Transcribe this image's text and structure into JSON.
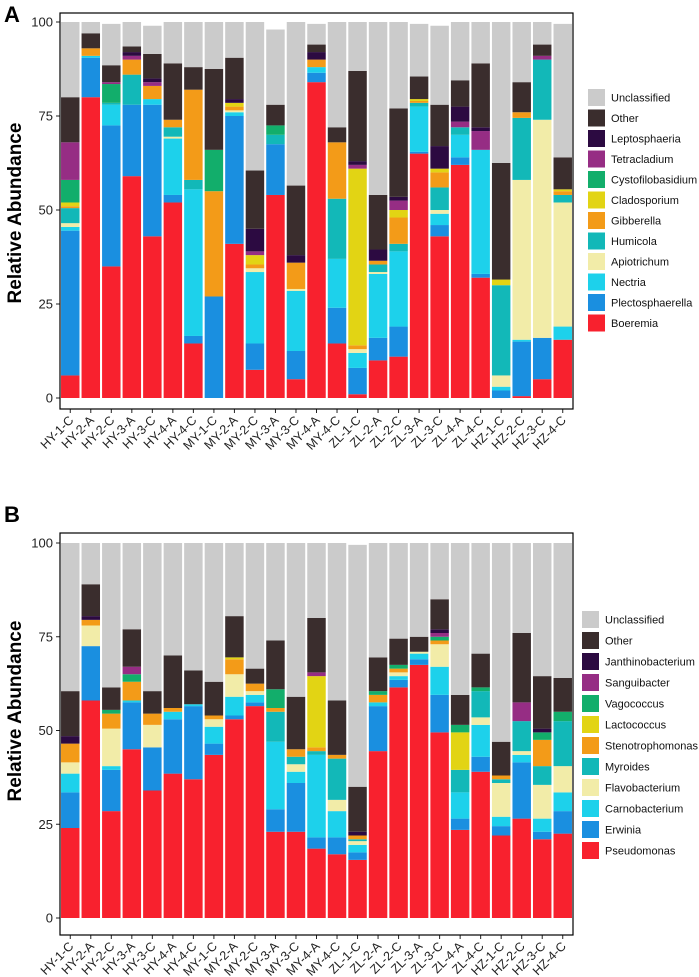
{
  "chart_data": [
    {
      "panel": "A",
      "type": "bar",
      "stacked": true,
      "ylabel": "Relative Abundance",
      "ylim": [
        0,
        100
      ],
      "yticks": [
        0,
        25,
        50,
        75,
        100
      ],
      "categories": [
        "HY-1-C",
        "HY-2-A",
        "HY-2-C",
        "HY-3-A",
        "HY-3-C",
        "HY-4-A",
        "HY-4-C",
        "MY-1-C",
        "MY-2-A",
        "MY-2-C",
        "MY-3-A",
        "MY-3-C",
        "MY-4-A",
        "MY-4-C",
        "ZL-1-C",
        "ZL-2-A",
        "ZL-2-C",
        "ZL-3-A",
        "ZL-3-C",
        "ZL-4-A",
        "ZL-4-C",
        "HZ-1-C",
        "HZ-2-C",
        "HZ-3-C",
        "HZ-4-C"
      ],
      "series": [
        {
          "name": "Boeremia",
          "color": "#F8212E",
          "values": [
            6,
            80,
            35,
            59,
            43,
            52,
            14.5,
            0,
            41,
            7.5,
            54,
            5,
            84,
            14.5,
            1,
            10,
            11,
            65,
            43,
            62,
            32,
            0,
            0.5,
            5,
            15.5
          ]
        },
        {
          "name": "Plectosphaerella",
          "color": "#1A8FE0",
          "values": [
            38.5,
            10.5,
            37.5,
            19,
            35,
            2,
            2,
            27,
            34,
            7,
            13.5,
            7.5,
            2.5,
            9.5,
            7,
            6,
            8,
            0.5,
            3,
            2,
            1,
            2,
            14.5,
            11,
            0
          ]
        },
        {
          "name": "Nectria",
          "color": "#1DD1EB",
          "values": [
            1,
            0.5,
            5.5,
            0,
            1.5,
            15,
            39,
            0,
            1,
            19,
            0,
            16,
            1.5,
            13,
            4,
            17,
            20,
            12,
            3,
            6,
            33,
            1,
            0.5,
            0,
            3.5
          ]
        },
        {
          "name": "Apiotrichum",
          "color": "#F2ECA8",
          "values": [
            1,
            0,
            0,
            0,
            0,
            0.5,
            0,
            0,
            0.5,
            1,
            0,
            0.5,
            0,
            0,
            1,
            0.5,
            0,
            0,
            1,
            0,
            0,
            3,
            42.5,
            58,
            33
          ]
        },
        {
          "name": "Humicola",
          "color": "#12B8B8",
          "values": [
            4,
            0,
            0.5,
            8,
            0,
            2.5,
            2.5,
            0,
            0,
            0,
            2.5,
            0,
            0,
            16,
            0,
            2,
            2,
            1,
            6,
            2,
            0,
            24,
            16.5,
            16,
            2
          ]
        },
        {
          "name": "Gibberella",
          "color": "#F39B18",
          "values": [
            0.5,
            2,
            0,
            4,
            3.5,
            2,
            24,
            28,
            1,
            1,
            0,
            7,
            2,
            15,
            1,
            1,
            7,
            0.5,
            4,
            0,
            0,
            0,
            1.5,
            0,
            1
          ]
        },
        {
          "name": "Cladosporium",
          "color": "#E2D414",
          "values": [
            1,
            0,
            0,
            0,
            0,
            0,
            0,
            0,
            1,
            2.5,
            0,
            0,
            0,
            0,
            47,
            0,
            2,
            0.5,
            1,
            0,
            0,
            1.5,
            0,
            0,
            0.5
          ]
        },
        {
          "name": "Cystofilobasidium",
          "color": "#12AE6B",
          "values": [
            6,
            0,
            5,
            0,
            0,
            0,
            0,
            11,
            0,
            0,
            2.5,
            0,
            0,
            0,
            0,
            0,
            0,
            0,
            0,
            0,
            0,
            0,
            0,
            0,
            0
          ]
        },
        {
          "name": "Tetracladium",
          "color": "#962D84",
          "values": [
            10,
            0,
            0.5,
            1,
            1,
            0,
            0,
            0,
            0,
            1,
            0,
            0,
            0,
            0,
            1,
            0,
            2.5,
            0,
            0,
            1.5,
            5,
            0,
            0,
            1,
            0
          ]
        },
        {
          "name": "Leptosphaeria",
          "color": "#2C0A41",
          "values": [
            0,
            0,
            0,
            1,
            1,
            0,
            0,
            0,
            1,
            6,
            0,
            2,
            2,
            0,
            1,
            3,
            1,
            0,
            6,
            4,
            1,
            0,
            0,
            0,
            0
          ]
        },
        {
          "name": "Other",
          "color": "#3A2D2D",
          "values": [
            12,
            4,
            4.5,
            1.5,
            6.5,
            15,
            6,
            21.5,
            11,
            15.5,
            5.5,
            18.5,
            2,
            4,
            24,
            14.5,
            23.5,
            6,
            11,
            7,
            17,
            31,
            8,
            3,
            8.5
          ]
        },
        {
          "name": "Unclassified",
          "color": "#CBCBCB",
          "values": [
            20,
            3,
            11,
            6.5,
            7.5,
            11,
            12,
            12.5,
            9.5,
            39.5,
            20,
            43.5,
            5.5,
            28,
            13,
            46,
            23,
            14,
            21,
            15.5,
            11,
            37.5,
            16,
            6,
            35.5
          ]
        }
      ]
    },
    {
      "panel": "B",
      "type": "bar",
      "stacked": true,
      "ylabel": "Relative Abundance",
      "ylim": [
        0,
        100
      ],
      "yticks": [
        0,
        25,
        50,
        75,
        100
      ],
      "categories": [
        "HY-1-C",
        "HY-2-A",
        "HY-2-C",
        "HY-3-A",
        "HY-3-C",
        "HY-4-A",
        "HY-4-C",
        "MY-1-C",
        "MY-2-A",
        "MY-2-C",
        "MY-3-A",
        "MY-3-C",
        "MY-4-A",
        "MY-4-C",
        "ZL-1-C",
        "ZL-2-A",
        "ZL-2-C",
        "ZL-3-A",
        "ZL-3-C",
        "ZL-4-A",
        "ZL-4-C",
        "HZ-1-C",
        "HZ-2-C",
        "HZ-3-C",
        "HZ-4-C"
      ],
      "series": [
        {
          "name": "Pseudomonas",
          "color": "#F8212E",
          "values": [
            24,
            58,
            28.5,
            45,
            34,
            38.5,
            37,
            43.5,
            53,
            56.5,
            23,
            23,
            18.5,
            17,
            15.5,
            44.5,
            61.5,
            67.5,
            49.5,
            23.5,
            39,
            22,
            26.5,
            21,
            22.5
          ]
        },
        {
          "name": "Erwinia",
          "color": "#1A8FE0",
          "values": [
            9.5,
            14.5,
            11,
            12.5,
            11.5,
            14.5,
            19.5,
            3,
            1,
            1,
            6,
            13,
            3,
            4.5,
            2,
            12,
            2,
            1.5,
            10,
            3,
            4,
            2.5,
            15,
            2,
            6
          ]
        },
        {
          "name": "Carnobacterium",
          "color": "#1DD1EB",
          "values": [
            5,
            0,
            1,
            0.5,
            0,
            2,
            0.5,
            4.5,
            5,
            2,
            18,
            3,
            22,
            7,
            2,
            1,
            1,
            1.5,
            7.5,
            7,
            8.5,
            2.5,
            2,
            3.5,
            5
          ]
        },
        {
          "name": "Flavobacterium",
          "color": "#F2ECA8",
          "values": [
            3,
            5.5,
            10,
            0,
            6,
            0,
            0,
            2,
            6,
            1,
            0,
            2,
            0,
            3,
            1,
            0,
            1,
            0.5,
            6,
            0,
            2,
            9,
            1,
            9,
            7
          ]
        },
        {
          "name": "Myroides",
          "color": "#12B8B8",
          "values": [
            0,
            0,
            0,
            0,
            0,
            0,
            0,
            0,
            0,
            0,
            8,
            2,
            1,
            11,
            0.5,
            0,
            0,
            0,
            0,
            6,
            7,
            1,
            8,
            5,
            12
          ]
        },
        {
          "name": "Stenotrophomonas",
          "color": "#F39B18",
          "values": [
            5,
            1.5,
            4,
            5,
            3,
            1,
            0,
            1,
            4,
            2,
            1,
            2,
            1,
            1,
            1,
            2,
            1,
            0,
            1,
            0,
            0,
            1,
            0,
            7,
            0
          ]
        },
        {
          "name": "Lactococcus",
          "color": "#E2D414",
          "values": [
            0,
            0,
            0,
            0,
            0,
            0,
            0,
            0,
            0.5,
            0,
            0,
            0,
            19,
            0,
            0,
            0,
            0,
            0,
            0,
            10,
            0,
            0,
            0,
            0,
            0
          ]
        },
        {
          "name": "Vagococcus",
          "color": "#12AE6B",
          "values": [
            0,
            0,
            1,
            2,
            0,
            0,
            0,
            0,
            0,
            0,
            5,
            0,
            0,
            0,
            0,
            1,
            1,
            0,
            1,
            2,
            1,
            0,
            0,
            2,
            2.5
          ]
        },
        {
          "name": "Sanguibacter",
          "color": "#962D84",
          "values": [
            0,
            0,
            0,
            2,
            0,
            0,
            0,
            0,
            0,
            0,
            0,
            0,
            1,
            0,
            0,
            0,
            0,
            0,
            1,
            0,
            0,
            0,
            5,
            0,
            0
          ]
        },
        {
          "name": "Janthinobacterium",
          "color": "#2C0A41",
          "values": [
            2,
            1,
            0,
            0,
            0,
            0,
            0,
            0,
            0,
            0,
            0,
            0,
            0,
            0,
            1,
            0,
            0,
            0,
            1,
            0,
            0,
            0,
            0,
            1,
            0
          ]
        },
        {
          "name": "Other",
          "color": "#3A2D2D",
          "values": [
            12,
            8.5,
            6,
            10,
            6,
            14,
            9,
            9,
            11,
            4,
            13,
            14,
            14.5,
            14.5,
            12,
            9,
            7,
            4,
            8,
            8,
            9,
            9,
            18.5,
            14,
            9
          ]
        },
        {
          "name": "Unclassified",
          "color": "#CBCBCB",
          "values": [
            39.5,
            11,
            38.5,
            23,
            39.5,
            30,
            34,
            37,
            19.5,
            33.5,
            26,
            41,
            20,
            42,
            64.5,
            30.5,
            25.5,
            25,
            15,
            40.5,
            29.5,
            53,
            24,
            35.5,
            36
          ]
        }
      ]
    }
  ]
}
